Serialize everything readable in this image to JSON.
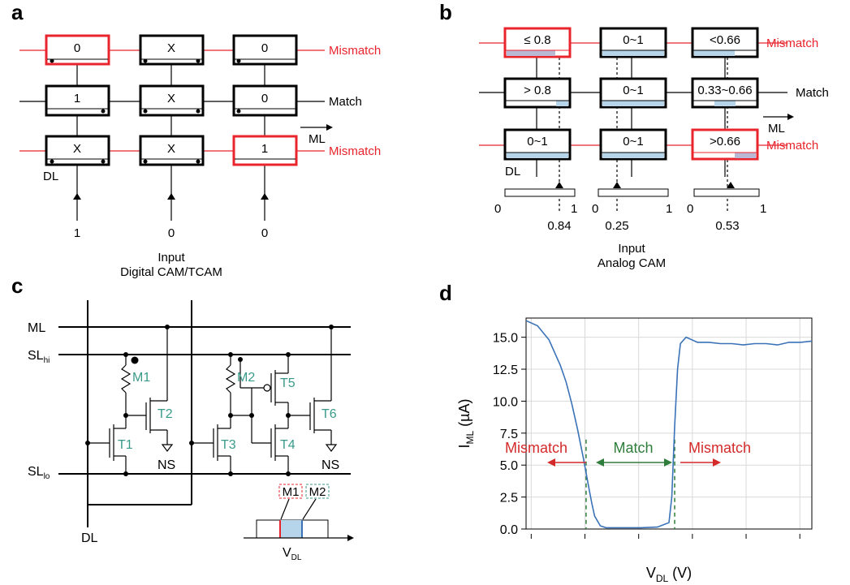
{
  "panels": {
    "a": {
      "label": "a",
      "rows": [
        {
          "cells": [
            "0",
            "X",
            "0"
          ],
          "outcome": "Mismatch",
          "mismatch_cell": 0
        },
        {
          "cells": [
            "1",
            "X",
            "0"
          ],
          "outcome": "Match",
          "mismatch_cell": -1
        },
        {
          "cells": [
            "X",
            "X",
            "1"
          ],
          "outcome": "Mismatch",
          "mismatch_cell": 2
        }
      ],
      "ml_label": "ML",
      "dl_label": "DL",
      "inputs": [
        "1",
        "0",
        "0"
      ],
      "caption_1": "Input",
      "caption_2": "Digital CAM/TCAM"
    },
    "b": {
      "label": "b",
      "rows": [
        {
          "cells": [
            "≤ 0.8",
            "0~1",
            "<0.66"
          ],
          "outcome": "Mismatch"
        },
        {
          "cells": [
            "> 0.8",
            "0~1",
            "0.33~0.66"
          ],
          "outcome": "Match"
        },
        {
          "cells": [
            "0~1",
            "0~1",
            ">0.66"
          ],
          "outcome": "Mismatch"
        }
      ],
      "ml_label": "ML",
      "dl_label": "DL",
      "scale_min": "0",
      "scale_max": "1",
      "inputs": [
        "0.84",
        "0.25",
        "0.53"
      ],
      "caption_1": "Input",
      "caption_2": "Analog CAM"
    },
    "c": {
      "label": "c",
      "ml": "ML",
      "sl_hi": "SL",
      "sl_hi_sub": "hi",
      "sl_lo": "SL",
      "sl_lo_sub": "lo",
      "dl": "DL",
      "devices": {
        "m1": "M1",
        "m2": "M2",
        "t1": "T1",
        "t2": "T2",
        "t3": "T3",
        "t4": "T4",
        "t5": "T5",
        "t6": "T6"
      },
      "ns": "NS",
      "vdl": "V",
      "vdl_sub": "DL"
    },
    "d": {
      "label": "d",
      "arrows": {
        "left": "Mismatch",
        "center": "Match",
        "right": "Mismatch"
      }
    }
  },
  "colors": {
    "mismatch": "#e8242c",
    "match_green": "#2e7d3a",
    "device_teal": "#3a9a8a",
    "curve_blue": "#3a72b8",
    "range_fill": "#b7d5ea"
  },
  "chart_data": {
    "type": "line",
    "title": "",
    "xlabel": "V",
    "xlabel_sub": "DL",
    "xlabel_unit": " (V)",
    "ylabel": "I",
    "ylabel_sub": "ML",
    "ylabel_unit": " (µA)",
    "ylim": [
      0,
      16.5
    ],
    "yticks": [
      "0.0",
      "2.5",
      "5.0",
      "7.5",
      "10.0",
      "12.5",
      "15.0"
    ],
    "ytick_values": [
      0,
      2.5,
      5,
      7.5,
      10,
      12.5,
      15
    ],
    "xlim": [
      0,
      5
    ],
    "xticks_count": 6,
    "x_tick_labels_shown": false,
    "grid": true,
    "series": [
      {
        "values_x": [
          0.0,
          0.2,
          0.4,
          0.6,
          0.7,
          0.8,
          0.9,
          1.0,
          1.05,
          1.1,
          1.15,
          1.2,
          1.3,
          1.4,
          1.5,
          1.7,
          2.0,
          2.3,
          2.5,
          2.55,
          2.6,
          2.65,
          2.7,
          2.8,
          2.9,
          3.0,
          3.2,
          3.4,
          3.6,
          3.8,
          4.0,
          4.2,
          4.4,
          4.6,
          4.8,
          5.0
        ],
        "values_y": [
          16.3,
          15.9,
          14.8,
          12.8,
          11.5,
          9.8,
          7.8,
          5.6,
          4.4,
          3.2,
          2.0,
          1.0,
          0.25,
          0.1,
          0.1,
          0.1,
          0.1,
          0.15,
          0.5,
          2.5,
          8.0,
          12.5,
          14.5,
          15.0,
          14.8,
          14.6,
          14.6,
          14.5,
          14.5,
          14.4,
          14.5,
          14.5,
          14.4,
          14.6,
          14.6,
          14.7
        ]
      }
    ],
    "threshold_lines_x": [
      1.05,
      2.6
    ]
  }
}
